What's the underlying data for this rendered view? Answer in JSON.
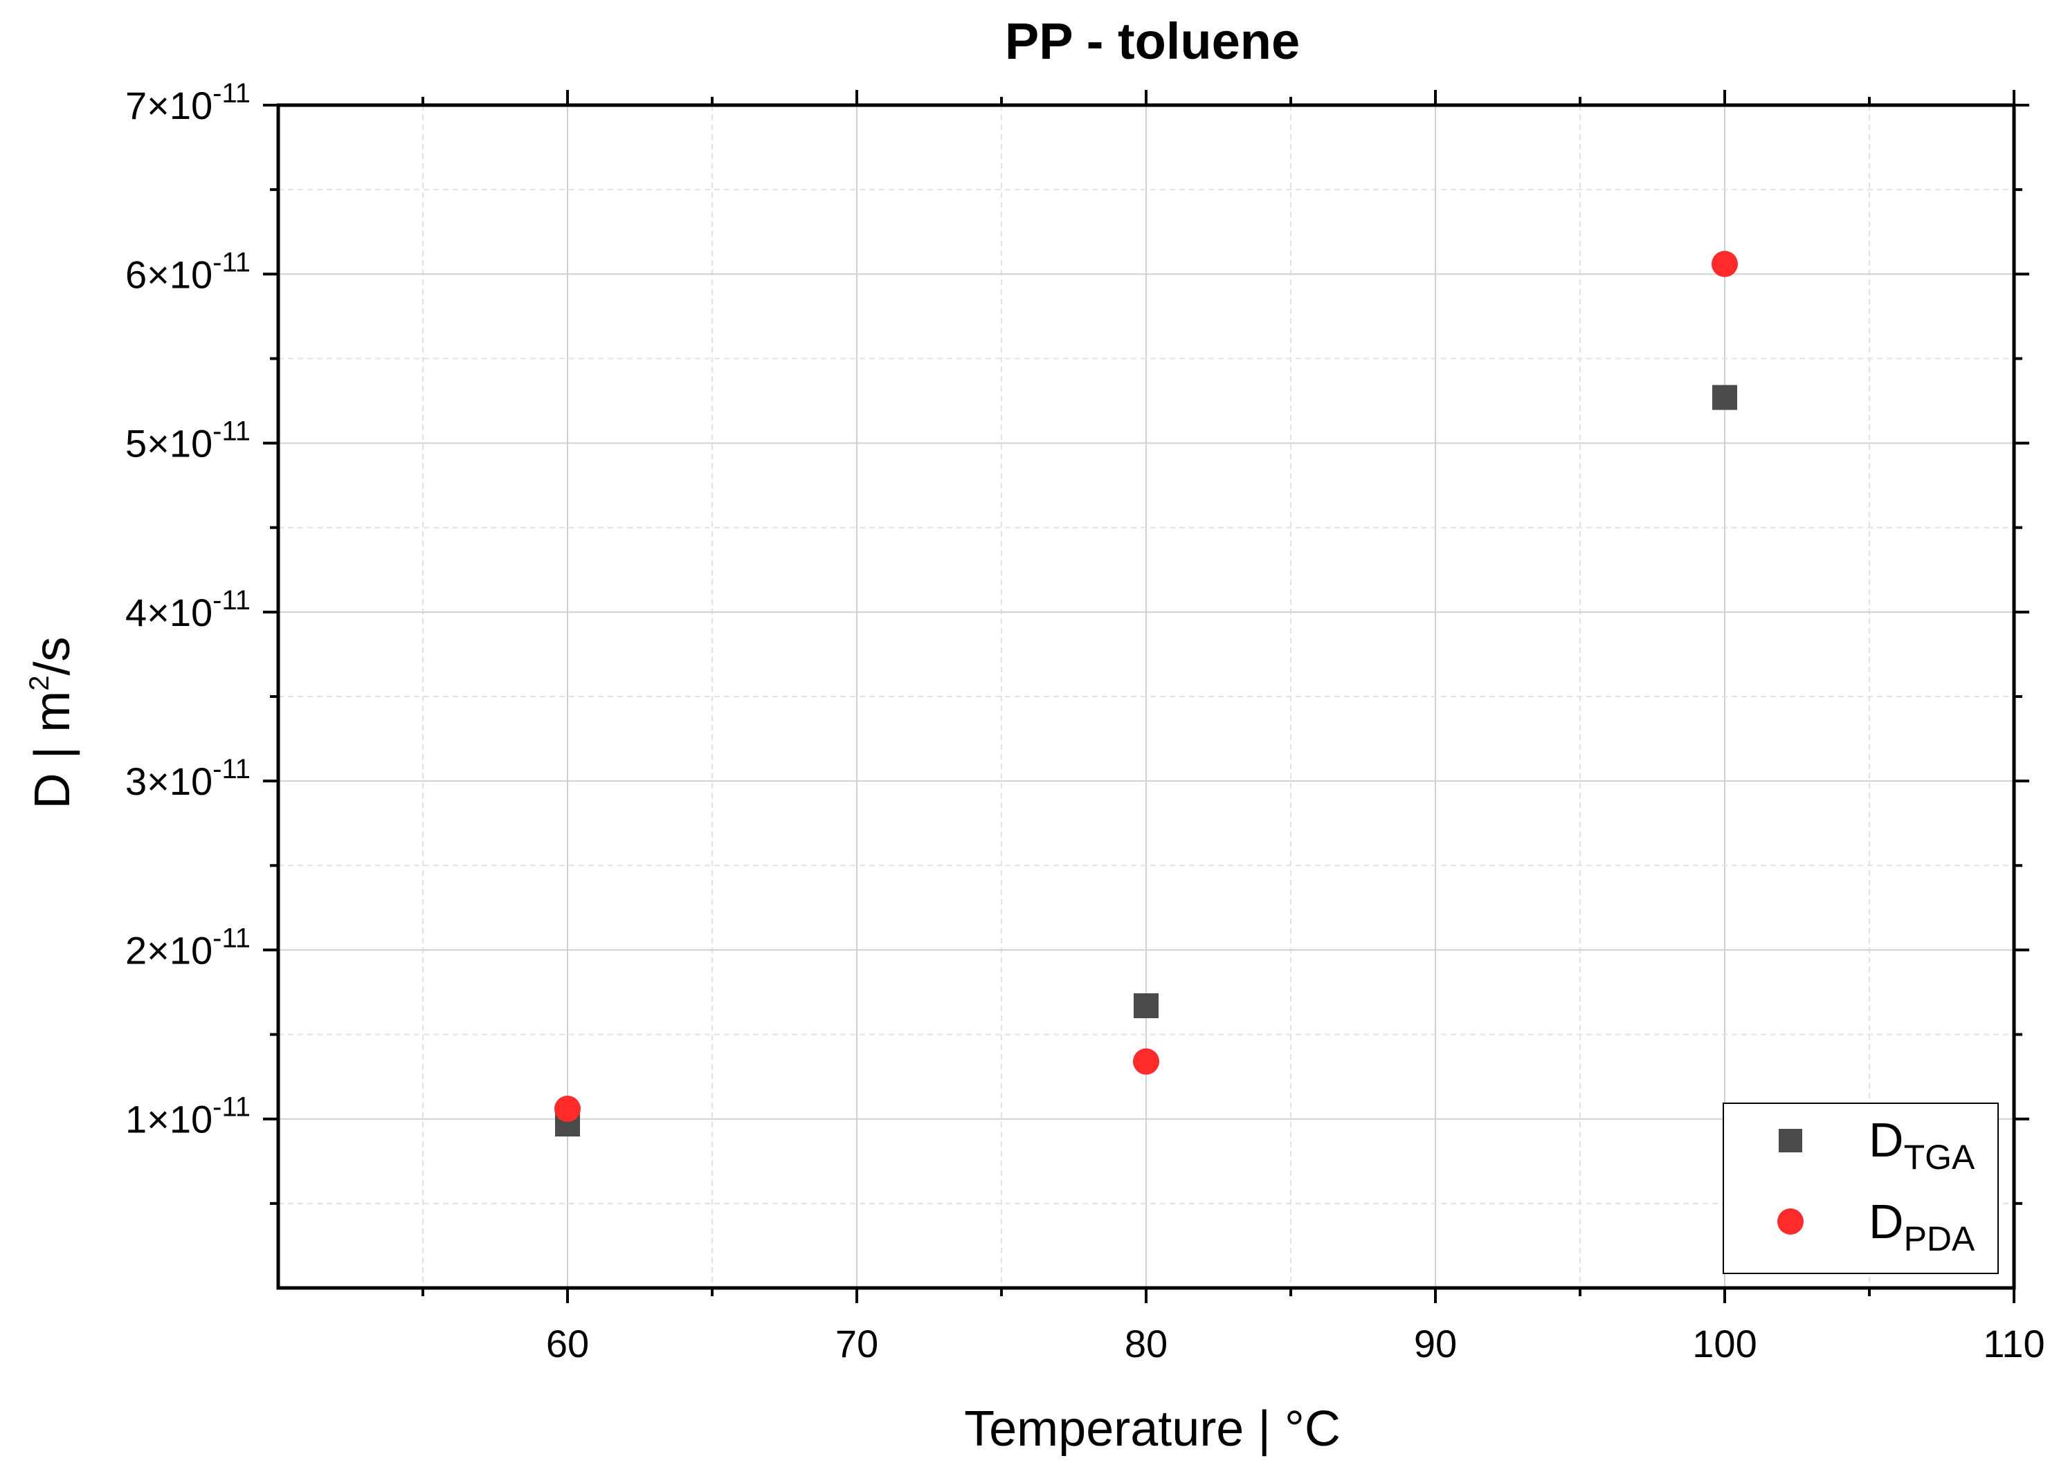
{
  "chart_data": {
    "type": "scatter",
    "title": "PP - toluene",
    "xlabel": "Temperature | °C",
    "ylabel": {
      "base": "D | m",
      "sup": "2",
      "rest": "/s"
    },
    "xlim": [
      50,
      110
    ],
    "ylim": [
      0,
      7e-11
    ],
    "x_ticks": [
      60,
      70,
      80,
      90,
      100,
      110
    ],
    "y_ticks": [
      1e-11,
      2e-11,
      3e-11,
      4e-11,
      5e-11,
      6e-11,
      7e-11
    ],
    "y_tick_labels": [
      {
        "mant": "1×10",
        "exp": "-11"
      },
      {
        "mant": "2×10",
        "exp": "-11"
      },
      {
        "mant": "3×10",
        "exp": "-11"
      },
      {
        "mant": "4×10",
        "exp": "-11"
      },
      {
        "mant": "5×10",
        "exp": "-11"
      },
      {
        "mant": "6×10",
        "exp": "-11"
      },
      {
        "mant": "7×10",
        "exp": "-11"
      }
    ],
    "grid": true,
    "legend_position": "bottom-right",
    "series": [
      {
        "name": {
          "main": "D",
          "sub": "TGA"
        },
        "marker": "square",
        "color": "#4a4a4a",
        "x": [
          60,
          80,
          100
        ],
        "y": [
          9.7e-12,
          1.67e-11,
          5.27e-11
        ]
      },
      {
        "name": {
          "main": "D",
          "sub": "PDA"
        },
        "marker": "circle",
        "color": "#ff2a2a",
        "x": [
          60,
          80,
          100
        ],
        "y": [
          1.06e-11,
          1.34e-11,
          6.06e-11
        ]
      }
    ]
  }
}
